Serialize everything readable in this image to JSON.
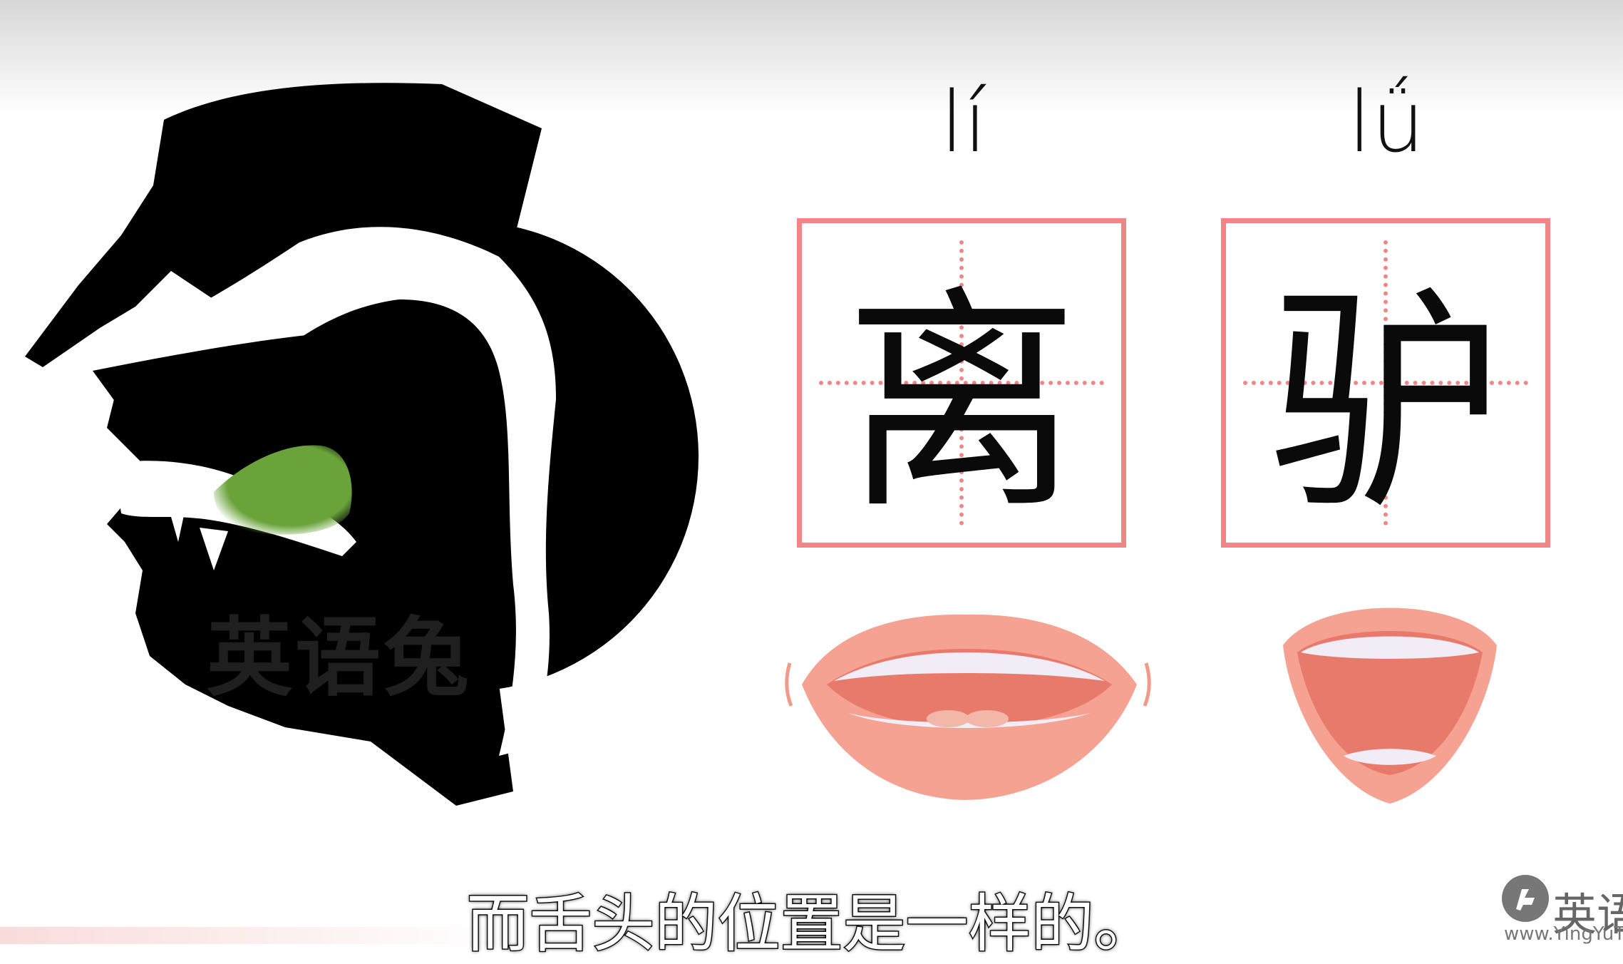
{
  "syllables": [
    {
      "pinyin": "lí",
      "hanzi": "离"
    },
    {
      "pinyin": "lǘ",
      "hanzi": "驴"
    }
  ],
  "diagram_watermark": "英语兔",
  "subtitle": "而舌头的位置是一样的。",
  "logo": {
    "text": "英语",
    "url": "www.YingYuT"
  },
  "colors": {
    "grid": "#f28686",
    "tongue": "#6aa33a",
    "lips": "#f29a8a",
    "mouth_inner": "#e8776b"
  }
}
